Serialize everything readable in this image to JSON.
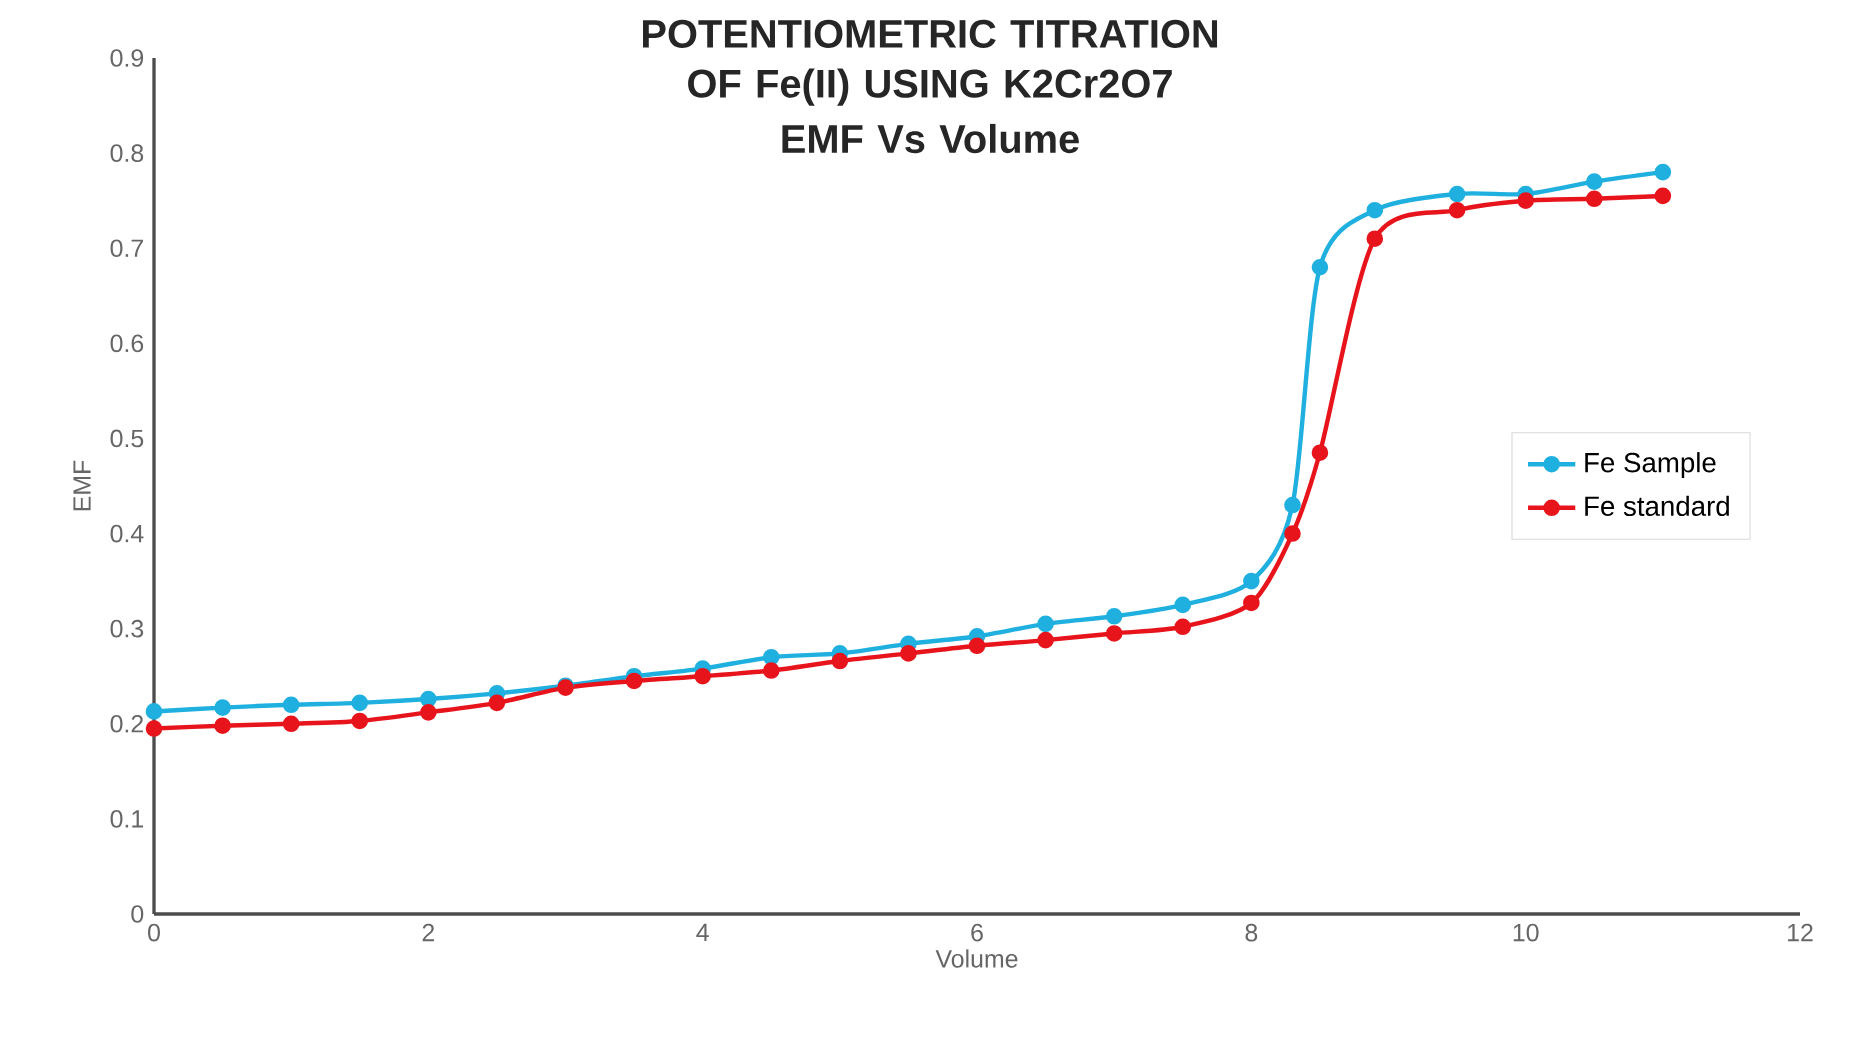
{
  "chart_data": {
    "type": "line",
    "title": "POTENTIOMETRIC TITRATION OF Fe(II) USING K2Cr2O7",
    "subtitle": "EMF Vs Volume",
    "xlabel": "Volume",
    "ylabel": "EMF",
    "xlim": [
      0,
      12
    ],
    "xticks": [
      0,
      2,
      4,
      6,
      8,
      10,
      12
    ],
    "ylim": [
      0,
      0.9
    ],
    "yticks": [
      0,
      0.1,
      0.2,
      0.3,
      0.4,
      0.5,
      0.6,
      0.7,
      0.8,
      0.9
    ],
    "marker": "circle",
    "legend": "right",
    "grid": false,
    "series": [
      {
        "name": "Fe Sample",
        "color": "#1fb0e0",
        "x": [
          0,
          0.5,
          1,
          1.5,
          2,
          2.5,
          3,
          3.5,
          4,
          4.5,
          5,
          5.5,
          6,
          6.5,
          7,
          7.5,
          8,
          8.3,
          8.5,
          8.9,
          9.5,
          10,
          10.5,
          11
        ],
        "values": [
          0.213,
          0.217,
          0.22,
          0.222,
          0.226,
          0.232,
          0.24,
          0.25,
          0.258,
          0.27,
          0.274,
          0.284,
          0.292,
          0.305,
          0.313,
          0.325,
          0.35,
          0.43,
          0.68,
          0.74,
          0.757,
          0.757,
          0.77,
          0.78
        ]
      },
      {
        "name": "Fe standard",
        "color": "#e8141c",
        "x": [
          0,
          0.5,
          1,
          1.5,
          2,
          2.5,
          3,
          3.5,
          4,
          4.5,
          5,
          5.5,
          6,
          6.5,
          7,
          7.5,
          8,
          8.3,
          8.5,
          8.9,
          9.5,
          10,
          10.5,
          11
        ],
        "values": [
          0.195,
          0.198,
          0.2,
          0.203,
          0.212,
          0.222,
          0.238,
          0.245,
          0.25,
          0.256,
          0.266,
          0.274,
          0.282,
          0.288,
          0.295,
          0.302,
          0.327,
          0.4,
          0.485,
          0.71,
          0.74,
          0.75,
          0.752,
          0.755
        ]
      }
    ]
  }
}
